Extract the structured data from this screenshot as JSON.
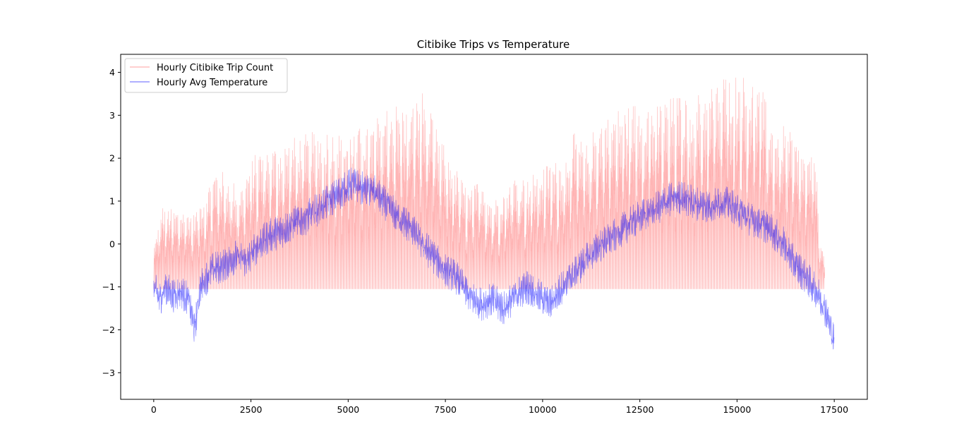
{
  "chart_data": {
    "type": "line",
    "title": "Citibike Trips vs Temperature",
    "xlabel": "",
    "ylabel": "",
    "xlim": [
      -850,
      18350
    ],
    "ylim": [
      -3.62,
      4.42
    ],
    "x_ticks": [
      0,
      2500,
      5000,
      7500,
      10000,
      12500,
      15000,
      17500
    ],
    "x_tick_labels": [
      "0",
      "2500",
      "5000",
      "7500",
      "10000",
      "12500",
      "15000",
      "17500"
    ],
    "y_ticks": [
      -3,
      -2,
      -1,
      0,
      1,
      2,
      3,
      4
    ],
    "y_tick_labels": [
      "−3",
      "−2",
      "−1",
      "0",
      "1",
      "2",
      "3",
      "4"
    ],
    "grid": false,
    "legend_position": "upper-left",
    "series": [
      {
        "name": "Hourly Citibike Trip Count",
        "color": "#ff0000",
        "opacity": 0.3,
        "envelope": {
          "x": [
            0,
            200,
            500,
            800,
            1000,
            1300,
            1600,
            1900,
            2200,
            2500,
            2800,
            3200,
            3600,
            4000,
            4400,
            4800,
            5200,
            5600,
            6000,
            6300,
            6600,
            6900,
            7200,
            7500,
            7800,
            8100,
            8400,
            8700,
            9000,
            9300,
            9600,
            9900,
            10200,
            10500,
            10800,
            11100,
            11400,
            11700,
            12000,
            12300,
            12600,
            12900,
            13200,
            13500,
            13800,
            14100,
            14400,
            14700,
            15000,
            15300,
            15600,
            15900,
            16200,
            16500,
            16800,
            17000,
            17100,
            17250
          ],
          "peak": [
            0.0,
            0.9,
            0.8,
            0.85,
            0.7,
            1.2,
            1.8,
            1.6,
            1.3,
            2.0,
            2.3,
            2.3,
            2.5,
            2.6,
            2.7,
            2.6,
            2.7,
            2.8,
            3.3,
            3.3,
            3.2,
            3.6,
            2.8,
            2.2,
            1.7,
            1.2,
            1.6,
            1.0,
            1.3,
            1.7,
            1.5,
            1.8,
            1.9,
            2.0,
            2.6,
            2.3,
            2.9,
            3.1,
            3.2,
            3.3,
            3.4,
            3.3,
            3.4,
            3.5,
            3.4,
            3.6,
            3.8,
            4.05,
            4.0,
            3.9,
            3.7,
            2.8,
            2.8,
            2.4,
            2.0,
            2.2,
            0.4,
            -0.5
          ],
          "base": -1.05
        }
      },
      {
        "name": "Hourly Avg Temperature",
        "color": "#0000ff",
        "opacity": 0.5,
        "profile": {
          "x": [
            0,
            150,
            300,
            500,
            700,
            900,
            1050,
            1200,
            1500,
            1800,
            2100,
            2400,
            2700,
            3000,
            3300,
            3600,
            3900,
            4200,
            4500,
            4800,
            5100,
            5400,
            5700,
            6000,
            6300,
            6600,
            6900,
            7200,
            7500,
            7800,
            8100,
            8400,
            8700,
            9000,
            9300,
            9600,
            9900,
            10200,
            10500,
            10800,
            11100,
            11400,
            11700,
            12000,
            12300,
            12600,
            12900,
            13200,
            13500,
            13800,
            14100,
            14400,
            14700,
            15000,
            15300,
            15600,
            15900,
            16200,
            16500,
            16800,
            17100,
            17300,
            17500
          ],
          "y": [
            -1.0,
            -1.3,
            -1.0,
            -1.2,
            -1.1,
            -1.3,
            -2.0,
            -1.0,
            -0.6,
            -0.5,
            -0.3,
            -0.4,
            0.0,
            0.2,
            0.3,
            0.5,
            0.6,
            0.8,
            1.0,
            1.2,
            1.4,
            1.3,
            1.2,
            0.9,
            0.6,
            0.4,
            0.0,
            -0.3,
            -0.6,
            -0.8,
            -1.2,
            -1.4,
            -1.3,
            -1.5,
            -1.2,
            -1.0,
            -1.2,
            -1.4,
            -1.0,
            -0.7,
            -0.4,
            -0.1,
            0.1,
            0.3,
            0.5,
            0.7,
            0.8,
            1.0,
            1.1,
            1.0,
            0.9,
            0.9,
            1.0,
            0.8,
            0.6,
            0.5,
            0.3,
            0.0,
            -0.5,
            -0.8,
            -1.2,
            -1.6,
            -2.3
          ]
        }
      }
    ]
  }
}
